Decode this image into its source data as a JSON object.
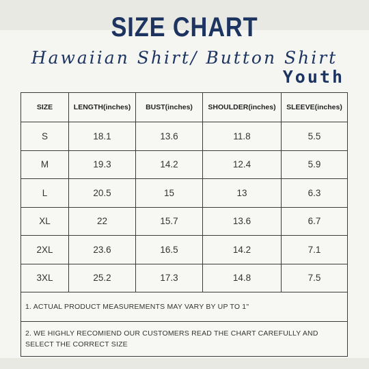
{
  "header": {
    "title": "SIZE CHART",
    "subtitle": "Hawaiian Shirt/ Button Shirt",
    "group": "Youth"
  },
  "table": {
    "columns": [
      "SIZE",
      "LENGTH(inches)",
      "BUST(inches)",
      "SHOULDER(inches)",
      "SLEEVE(inches)"
    ],
    "rows": [
      [
        "S",
        "18.1",
        "13.6",
        "11.8",
        "5.5"
      ],
      [
        "M",
        "19.3",
        "14.2",
        "12.4",
        "5.9"
      ],
      [
        "L",
        "20.5",
        "15",
        "13",
        "6.3"
      ],
      [
        "XL",
        "22",
        "15.7",
        "13.6",
        "6.7"
      ],
      [
        "2XL",
        "23.6",
        "16.5",
        "14.2",
        "7.1"
      ],
      [
        "3XL",
        "25.2",
        "17.3",
        "14.8",
        "7.5"
      ]
    ],
    "notes": [
      "1. ACTUAL PRODUCT MEASUREMENTS MAY VARY BY UP TO 1\"",
      "2. WE HIGHLY RECOMIEND OUR CUSTOMERS READ THE CHART CAREFULLY AND SELECT THE CORRECT SIZE"
    ]
  },
  "colors": {
    "title": "#1d3461",
    "background": "#f5f5f1",
    "border": "#3a3a3a"
  }
}
